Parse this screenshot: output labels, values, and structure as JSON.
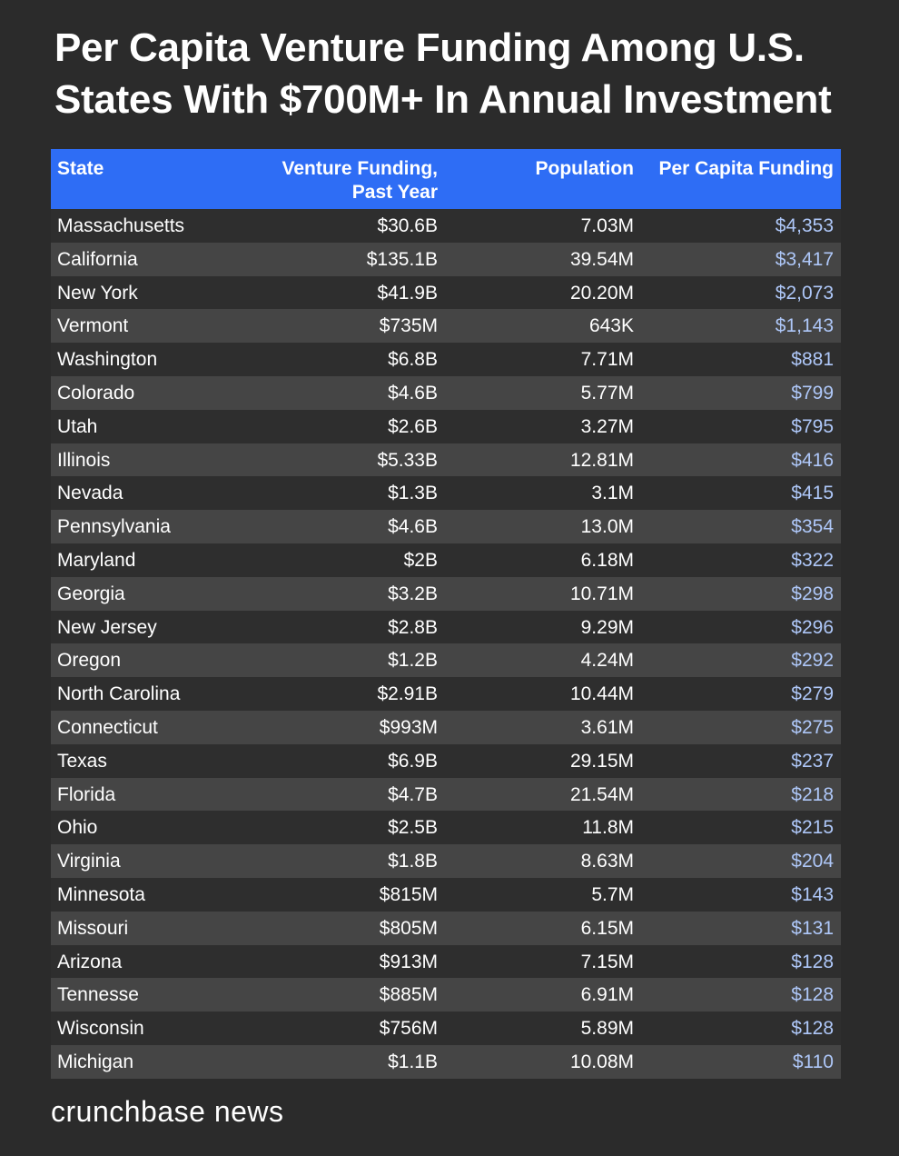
{
  "title": "Per Capita Venture Funding Among U.S. States With $700M+ In Annual Investment",
  "footer": "crunchbase news",
  "colors": {
    "background": "#2b2b2b",
    "header": "#2e6df5",
    "per_capita_text": "#aec7f8"
  },
  "chart_data": {
    "type": "table",
    "title": "Per Capita Venture Funding Among U.S. States With $700M+ In Annual Investment",
    "columns": [
      "State",
      "Venture Funding, Past Year",
      "Population",
      "Per Capita Funding"
    ],
    "rows": [
      [
        "Massachusetts",
        "$30.6B",
        "7.03M",
        "$4,353"
      ],
      [
        "California",
        "$135.1B",
        "39.54M",
        "$3,417"
      ],
      [
        "New York",
        "$41.9B",
        "20.20M",
        "$2,073"
      ],
      [
        "Vermont",
        "$735M",
        "643K",
        "$1,143"
      ],
      [
        "Washington",
        "$6.8B",
        "7.71M",
        "$881"
      ],
      [
        "Colorado",
        "$4.6B",
        "5.77M",
        "$799"
      ],
      [
        "Utah",
        "$2.6B",
        "3.27M",
        "$795"
      ],
      [
        "Illinois",
        "$5.33B",
        "12.81M",
        "$416"
      ],
      [
        "Nevada",
        "$1.3B",
        "3.1M",
        "$415"
      ],
      [
        "Pennsylvania",
        "$4.6B",
        "13.0M",
        "$354"
      ],
      [
        "Maryland",
        "$2B",
        "6.18M",
        "$322"
      ],
      [
        "Georgia",
        "$3.2B",
        "10.71M",
        "$298"
      ],
      [
        "New Jersey",
        "$2.8B",
        "9.29M",
        "$296"
      ],
      [
        "Oregon",
        "$1.2B",
        "4.24M",
        "$292"
      ],
      [
        "North Carolina",
        "$2.91B",
        "10.44M",
        "$279"
      ],
      [
        "Connecticut",
        "$993M",
        "3.61M",
        "$275"
      ],
      [
        "Texas",
        "$6.9B",
        "29.15M",
        "$237"
      ],
      [
        "Florida",
        "$4.7B",
        "21.54M",
        "$218"
      ],
      [
        "Ohio",
        "$2.5B",
        "11.8M",
        "$215"
      ],
      [
        "Virginia",
        "$1.8B",
        "8.63M",
        "$204"
      ],
      [
        "Minnesota",
        "$815M",
        "5.7M",
        "$143"
      ],
      [
        "Missouri",
        "$805M",
        "6.15M",
        "$131"
      ],
      [
        "Arizona",
        "$913M",
        "7.15M",
        "$128"
      ],
      [
        "Tennesse",
        "$885M",
        "6.91M",
        "$128"
      ],
      [
        "Wisconsin",
        "$756M",
        "5.89M",
        "$128"
      ],
      [
        "Michigan",
        "$1.1B",
        "10.08M",
        "$110"
      ]
    ]
  },
  "header_lines": {
    "state": "State",
    "venture_line1": "Venture Funding,",
    "venture_line2": "Past Year",
    "population": "Population",
    "per_capita": "Per Capita Funding"
  }
}
